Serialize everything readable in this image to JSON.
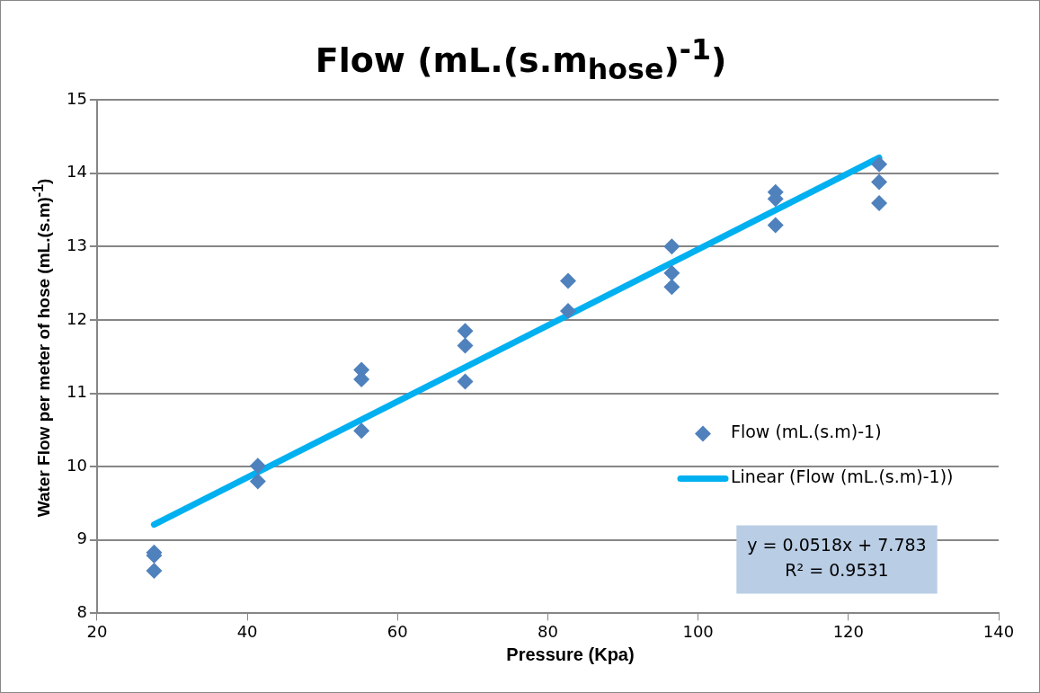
{
  "chart_data": {
    "type": "scatter",
    "title": "Flow (mL.(s.m$_{hose}$)$^{-1}$)",
    "xlabel": "Pressure (Kpa)",
    "ylabel": "Water Flow per meter of hose (mL.(s.m)$^{-1}$)",
    "x": [
      27.6,
      27.6,
      27.6,
      41.4,
      41.4,
      55.2,
      55.2,
      55.2,
      69,
      69,
      69,
      82.7,
      82.7,
      96.5,
      96.5,
      96.5,
      110.3,
      110.3,
      110.3,
      124.1,
      124.1,
      124.1
    ],
    "series": [
      {
        "name": "Flow (mL.(s.m)-1)",
        "color": "#4f81bd",
        "marker": "diamond",
        "values": [
          8.83,
          8.79,
          8.58,
          10.01,
          9.8,
          11.32,
          11.19,
          10.49,
          11.85,
          11.65,
          11.16,
          12.53,
          12.12,
          13.0,
          12.64,
          12.45,
          13.74,
          13.65,
          13.29,
          14.12,
          13.88,
          13.59
        ]
      },
      {
        "name": "Linear (Flow (mL.(s.m)-1))",
        "type": "line",
        "color": "#00b0f0",
        "marker": "none",
        "x": [
          27.6,
          124.1
        ],
        "values": [
          9.21,
          14.21
        ]
      }
    ],
    "annotations": [
      "y = 0.0518x + 7.783",
      "R² = 0.9531"
    ],
    "xlim": [
      20,
      140
    ],
    "xticks": [
      20,
      40,
      60,
      80,
      100,
      120,
      140
    ],
    "ylim": [
      8,
      15
    ],
    "yticks": [
      8,
      9,
      10,
      11,
      12,
      13,
      14,
      15
    ],
    "grid": "y",
    "legend": "right"
  }
}
